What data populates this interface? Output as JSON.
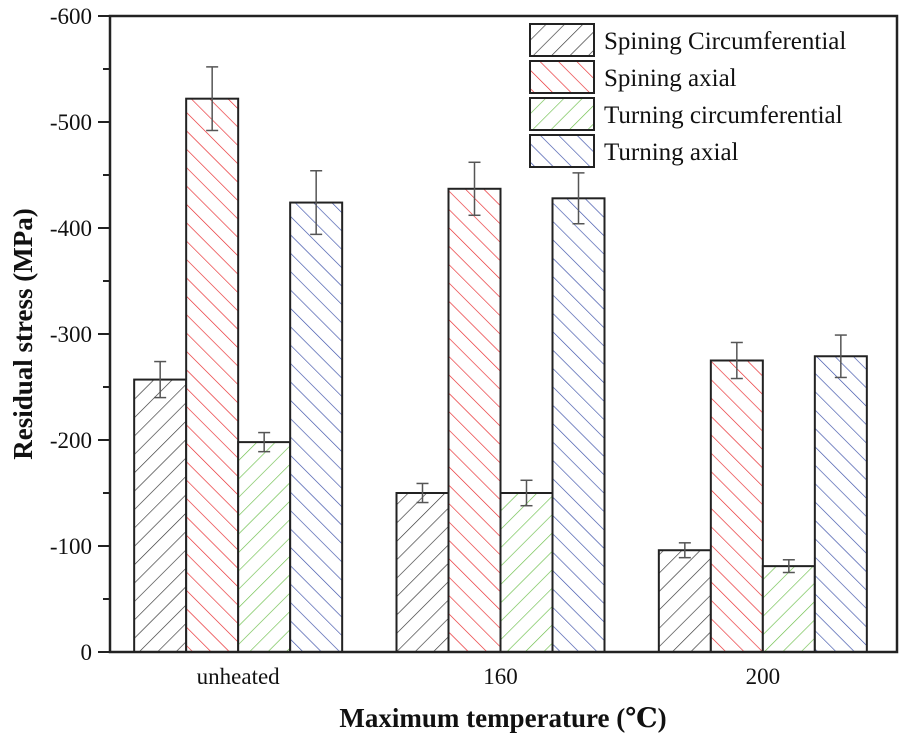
{
  "chart_data": {
    "type": "bar",
    "title": "",
    "xlabel": "Maximum temperature (℃)",
    "ylabel": "Residual stress (MPa)",
    "categories": [
      "unheated",
      "160",
      "200"
    ],
    "ylim": [
      0,
      -600
    ],
    "yticks": [
      0,
      -100,
      -200,
      -300,
      -400,
      -500,
      -600
    ],
    "ytick_labels": [
      "0",
      "-100",
      "-200",
      "-300",
      "-400",
      "-500",
      "-600"
    ],
    "grid": false,
    "legend_position": "top-right",
    "series": [
      {
        "name": "Spining Circumferential",
        "color": "#333333",
        "hatch": "forward",
        "values": [
          -257,
          -150,
          -96
        ],
        "errors": [
          17,
          9,
          7
        ]
      },
      {
        "name": "Spining axial",
        "color": "#e8262a",
        "hatch": "back",
        "values": [
          -522,
          -437,
          -275
        ],
        "errors": [
          30,
          25,
          17
        ]
      },
      {
        "name": "Turning circumferential",
        "color": "#6cbf4a",
        "hatch": "forward",
        "values": [
          -198,
          -150,
          -81
        ],
        "errors": [
          9,
          12,
          6
        ]
      },
      {
        "name": "Turning axial",
        "color": "#3a4fa8",
        "hatch": "back",
        "values": [
          -424,
          -428,
          -279
        ],
        "errors": [
          30,
          24,
          20
        ]
      }
    ]
  }
}
